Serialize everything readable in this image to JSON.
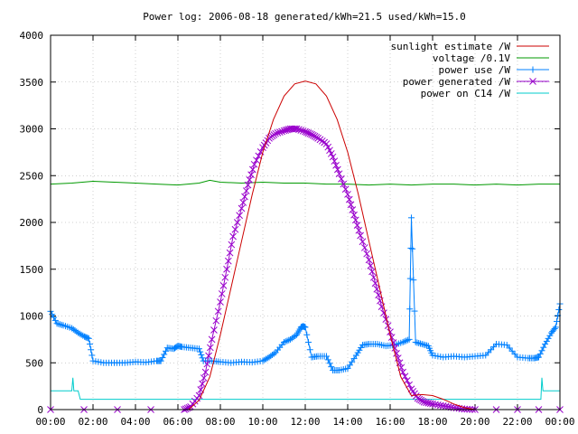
{
  "chart_data": {
    "type": "line",
    "title": "Power log: 2006-08-18 generated/kWh=21.5 used/kWh=15.0",
    "xlabel": "",
    "ylabel": "",
    "xlim": [
      0,
      24
    ],
    "ylim": [
      0,
      4000
    ],
    "grid": true,
    "legend_position": "top-right",
    "x_ticks": [
      "00:00",
      "02:00",
      "04:00",
      "06:00",
      "08:00",
      "10:00",
      "12:00",
      "14:00",
      "16:00",
      "18:00",
      "20:00",
      "22:00",
      "00:00"
    ],
    "x_tick_hours": [
      0,
      2,
      4,
      6,
      8,
      10,
      12,
      14,
      16,
      18,
      20,
      22,
      24
    ],
    "y_ticks": [
      0,
      500,
      1000,
      1500,
      2000,
      2500,
      3000,
      3500,
      4000
    ],
    "series": [
      {
        "name": "sunlight estimate /W",
        "color": "#cc0000",
        "marker": "none",
        "x": [
          6.5,
          7.0,
          7.5,
          8.0,
          8.5,
          9.0,
          9.5,
          10.0,
          10.5,
          11.0,
          11.5,
          12.0,
          12.5,
          13.0,
          13.5,
          14.0,
          14.5,
          15.0,
          15.5,
          16.0,
          16.5,
          17.0,
          17.5,
          18.0,
          18.5,
          19.0,
          19.5,
          20.0
        ],
        "values": [
          0,
          100,
          350,
          800,
          1300,
          1800,
          2300,
          2750,
          3100,
          3350,
          3480,
          3510,
          3480,
          3350,
          3100,
          2750,
          2300,
          1800,
          1300,
          800,
          350,
          150,
          160,
          150,
          110,
          60,
          20,
          0
        ]
      },
      {
        "name": "voltage /0.1V",
        "color": "#009900",
        "marker": "none",
        "x": [
          0,
          1,
          2,
          3,
          4,
          5,
          6,
          7,
          7.5,
          8,
          9,
          10,
          11,
          12,
          13,
          14,
          15,
          16,
          17,
          18,
          19,
          20,
          21,
          22,
          23,
          24
        ],
        "values": [
          2410,
          2420,
          2440,
          2430,
          2420,
          2410,
          2400,
          2420,
          2450,
          2430,
          2420,
          2430,
          2420,
          2420,
          2410,
          2410,
          2400,
          2410,
          2400,
          2410,
          2410,
          2400,
          2410,
          2400,
          2410,
          2410
        ]
      },
      {
        "name": "power use /W",
        "color": "#0080ff",
        "marker": "plus",
        "x": [
          0,
          0.3,
          0.6,
          1.0,
          1.3,
          1.6,
          1.8,
          2.0,
          2.5,
          3.0,
          3.5,
          4.0,
          4.5,
          5.0,
          5.2,
          5.5,
          5.8,
          6.0,
          6.2,
          6.6,
          7.0,
          7.2,
          7.6,
          8.0,
          8.5,
          9.0,
          9.5,
          10.0,
          10.3,
          10.6,
          11.0,
          11.3,
          11.6,
          11.8,
          11.9,
          12.0,
          12.3,
          12.6,
          13.0,
          13.3,
          13.6,
          14.0,
          14.4,
          14.7,
          15.0,
          15.4,
          15.8,
          16.2,
          16.6,
          16.9,
          17.0,
          17.2,
          17.5,
          17.8,
          18.0,
          18.5,
          19.0,
          19.5,
          20.0,
          20.5,
          21.0,
          21.5,
          22.0,
          22.5,
          22.8,
          23.0,
          23.3,
          23.6,
          23.8,
          24.0
        ],
        "values": [
          1050,
          920,
          900,
          870,
          820,
          780,
          760,
          520,
          500,
          500,
          500,
          510,
          505,
          520,
          520,
          660,
          650,
          680,
          670,
          660,
          650,
          520,
          520,
          510,
          500,
          510,
          505,
          520,
          560,
          610,
          720,
          750,
          800,
          880,
          890,
          880,
          560,
          570,
          570,
          420,
          420,
          440,
          580,
          690,
          700,
          700,
          680,
          690,
          720,
          750,
          2050,
          720,
          700,
          680,
          580,
          560,
          570,
          560,
          570,
          580,
          700,
          690,
          560,
          550,
          550,
          560,
          700,
          820,
          880,
          1130
        ]
      },
      {
        "name": "power generated /W",
        "color": "#9900cc",
        "marker": "x",
        "x": [
          0,
          6.3,
          6.6,
          7.0,
          7.3,
          7.6,
          8.0,
          8.3,
          8.6,
          9.0,
          9.3,
          9.6,
          10.0,
          10.3,
          10.6,
          11.0,
          11.3,
          11.6,
          12.0,
          12.3,
          12.6,
          13.0,
          13.3,
          13.6,
          14.0,
          14.3,
          14.6,
          15.0,
          15.3,
          15.6,
          16.0,
          16.3,
          16.6,
          17.0,
          17.3,
          17.6,
          18.0,
          18.5,
          19.0,
          19.5,
          20.0,
          24.0
        ],
        "values": [
          0,
          0,
          30,
          150,
          400,
          750,
          1150,
          1500,
          1850,
          2150,
          2400,
          2620,
          2800,
          2900,
          2950,
          2980,
          3000,
          3000,
          2970,
          2940,
          2900,
          2840,
          2700,
          2520,
          2300,
          2080,
          1860,
          1600,
          1350,
          1100,
          830,
          600,
          400,
          220,
          120,
          80,
          60,
          40,
          20,
          5,
          0,
          0
        ]
      },
      {
        "name": "power on C14 /W",
        "color": "#00cccc",
        "marker": "none",
        "x": [
          0,
          0.9,
          1.0,
          1.05,
          1.1,
          1.3,
          1.4,
          2.0,
          22.5,
          23.0,
          23.1,
          23.15,
          23.2,
          24.0
        ],
        "values": [
          200,
          200,
          200,
          340,
          200,
          200,
          110,
          110,
          110,
          110,
          110,
          340,
          200,
          200
        ]
      }
    ]
  }
}
